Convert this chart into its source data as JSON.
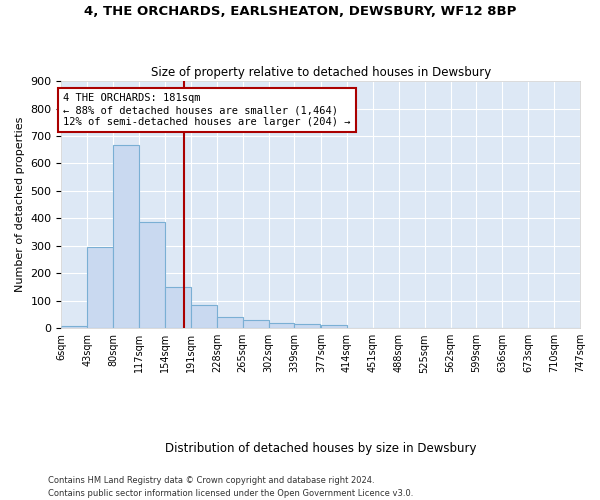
{
  "title": "4, THE ORCHARDS, EARLSHEATON, DEWSBURY, WF12 8BP",
  "subtitle": "Size of property relative to detached houses in Dewsbury",
  "xlabel": "Distribution of detached houses by size in Dewsbury",
  "ylabel": "Number of detached properties",
  "bar_color": "#c9d9f0",
  "bar_edge_color": "#7aafd4",
  "background_color": "#ffffff",
  "plot_bg_color": "#dde8f5",
  "grid_color": "#ffffff",
  "annotation_line_color": "#aa0000",
  "annotation_box_color": "#aa0000",
  "bin_edges": [
    6,
    43,
    80,
    117,
    154,
    191,
    228,
    265,
    302,
    339,
    377,
    414,
    451,
    488,
    525,
    562,
    599,
    636,
    673,
    710,
    747
  ],
  "bin_labels": [
    "6sqm",
    "43sqm",
    "80sqm",
    "117sqm",
    "154sqm",
    "191sqm",
    "228sqm",
    "265sqm",
    "302sqm",
    "339sqm",
    "377sqm",
    "414sqm",
    "451sqm",
    "488sqm",
    "525sqm",
    "562sqm",
    "599sqm",
    "636sqm",
    "673sqm",
    "710sqm",
    "747sqm"
  ],
  "counts": [
    8,
    295,
    667,
    385,
    150,
    85,
    40,
    30,
    20,
    15,
    10,
    0,
    0,
    0,
    0,
    0,
    0,
    0,
    0,
    0
  ],
  "property_size": 181,
  "annotation_text_line1": "4 THE ORCHARDS: 181sqm",
  "annotation_text_line2": "← 88% of detached houses are smaller (1,464)",
  "annotation_text_line3": "12% of semi-detached houses are larger (204) →",
  "footnote1": "Contains HM Land Registry data © Crown copyright and database right 2024.",
  "footnote2": "Contains public sector information licensed under the Open Government Licence v3.0.",
  "ylim": [
    0,
    900
  ],
  "yticks": [
    0,
    100,
    200,
    300,
    400,
    500,
    600,
    700,
    800,
    900
  ]
}
